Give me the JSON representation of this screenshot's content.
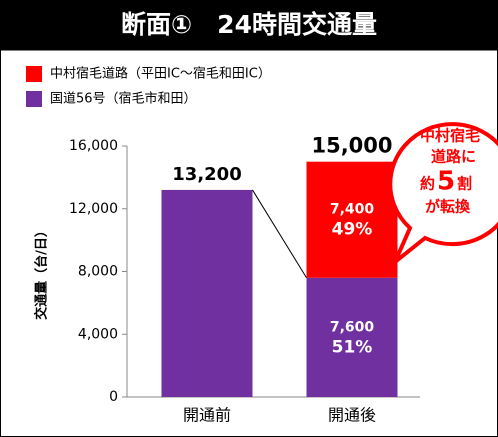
{
  "chart_data": {
    "type": "stacked_bar",
    "title": "断面①　24時間交通量",
    "categories": [
      "開通前",
      "開通後"
    ],
    "series": [
      {
        "name": "国道56号（宿毛市和田）",
        "color": "#7030a0",
        "values": [
          13200,
          7600
        ],
        "value_labels": [
          null,
          "7,600"
        ],
        "percent_labels": [
          null,
          "51%"
        ]
      },
      {
        "name": "中村宿毛道路（平田IC～宿毛和田IC）",
        "color": "#ff0000",
        "values": [
          null,
          7400
        ],
        "value_labels": [
          null,
          "7,400"
        ],
        "percent_labels": [
          null,
          "49%"
        ]
      }
    ],
    "totals": [
      13200,
      15000
    ],
    "total_labels": [
      "13,200",
      "15,000"
    ],
    "ylabel": "交通量（台/日）",
    "ylim": [
      0,
      16000
    ],
    "yticks": [
      0,
      {
        "value": 4000,
        "label": "4,000"
      },
      {
        "value": 8000,
        "label": "8,000"
      },
      {
        "value": 12000,
        "label": "12,000"
      },
      {
        "value": 16000,
        "label": "16,000"
      }
    ],
    "callout": [
      "中村宿毛",
      "道路に",
      "約",
      "5",
      "割",
      "が転換"
    ]
  }
}
